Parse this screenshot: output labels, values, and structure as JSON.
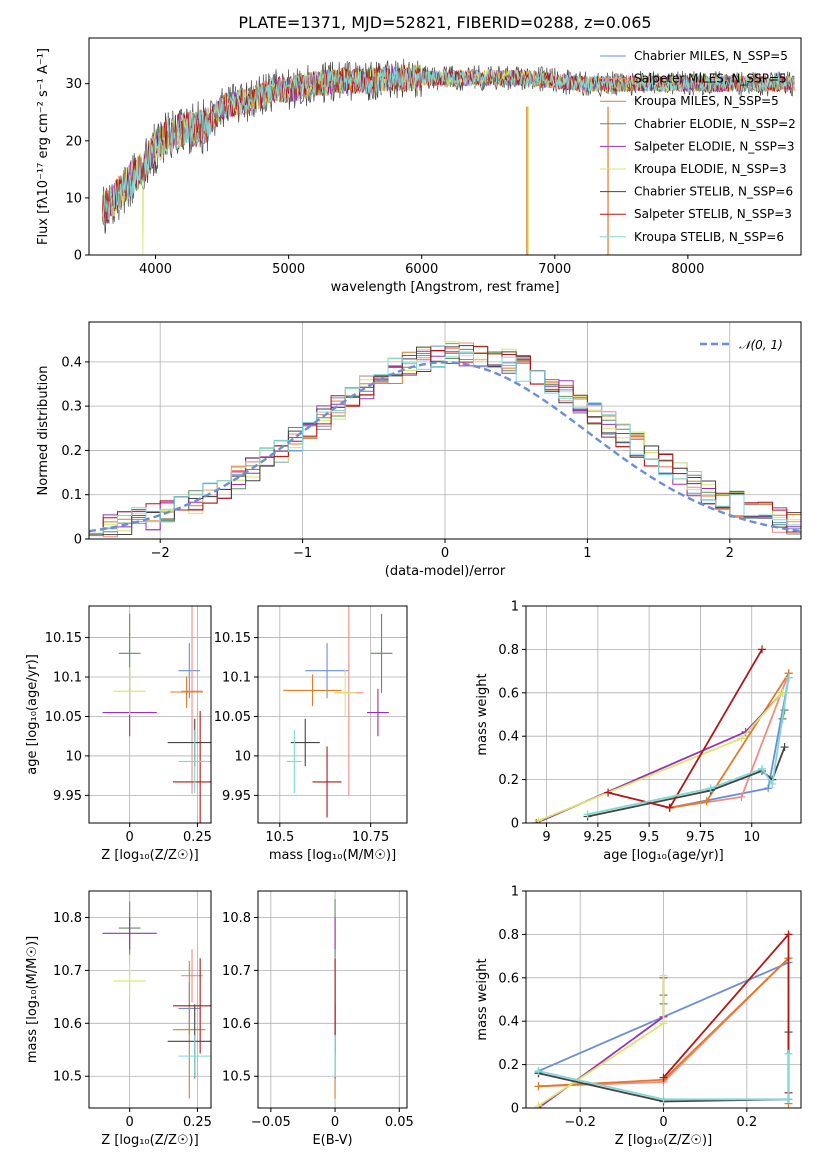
{
  "title": "PLATE=1371, MJD=52821, FIBERID=0288, z=0.065",
  "colors": {
    "Chabrier MILES": "#6b8fd6",
    "Salpeter MILES": "#f28b82",
    "Kroupa MILES": "#e07b2a",
    "Chabrier ELODIE": "#5f8f5f",
    "Salpeter ELODIE": "#9b30b5",
    "Kroupa ELODIE": "#d8e66a",
    "Chabrier STELIB": "#444444",
    "Salpeter STELIB": "#b01818",
    "Kroupa STELIB": "#7fd8d8"
  },
  "chart_data": [
    {
      "id": "spectrum",
      "type": "line",
      "xlabel": "wavelength [Angstrom, rest frame]",
      "ylabel": "Flux [fλ10⁻¹⁷ erg cm⁻² s⁻¹ A⁻¹]",
      "xlim": [
        3500,
        8850
      ],
      "ylim": [
        0,
        38
      ],
      "xticks": [
        4000,
        5000,
        6000,
        7000,
        8000
      ],
      "yticks": [
        0,
        10,
        20,
        30
      ],
      "grid": false,
      "legend": "top-right",
      "legend_entries": [
        "Chabrier MILES, N_SSP=5",
        "Salpeter MILES, N_SSP=5",
        "Kroupa MILES, N_SSP=5",
        "Chabrier ELODIE, N_SSP=2",
        "Salpeter ELODIE, N_SSP=3",
        "Kroupa ELODIE, N_SSP=3",
        "Chabrier STELIB, N_SSP=6",
        "Salpeter STELIB, N_SSP=3",
        "Kroupa STELIB, N_SSP=6"
      ],
      "continuum": [
        [
          3600,
          8
        ],
        [
          3700,
          10
        ],
        [
          3800,
          13
        ],
        [
          3900,
          15
        ],
        [
          4000,
          19
        ],
        [
          4100,
          21
        ],
        [
          4200,
          22
        ],
        [
          4300,
          22
        ],
        [
          4400,
          23
        ],
        [
          4500,
          26
        ],
        [
          4700,
          27
        ],
        [
          4900,
          29
        ],
        [
          5000,
          29
        ],
        [
          5100,
          29.5
        ],
        [
          5200,
          30
        ],
        [
          5400,
          30.5
        ],
        [
          5600,
          30.5
        ],
        [
          5800,
          31
        ],
        [
          6000,
          31
        ],
        [
          6200,
          31
        ],
        [
          6400,
          31
        ],
        [
          6600,
          31
        ],
        [
          6800,
          31
        ],
        [
          7000,
          30.5
        ],
        [
          7200,
          30
        ],
        [
          7400,
          30
        ],
        [
          7600,
          30
        ],
        [
          7800,
          30
        ],
        [
          8000,
          30
        ],
        [
          8200,
          30
        ],
        [
          8400,
          30
        ],
        [
          8800,
          30
        ]
      ]
    },
    {
      "id": "residuals",
      "type": "step",
      "xlabel": "(data-model)/error",
      "ylabel": "Normed distribution",
      "xlim": [
        -2.5,
        2.5
      ],
      "ylim": [
        0,
        0.49
      ],
      "xticks": [
        -2,
        -1,
        0,
        1,
        2
      ],
      "yticks": [
        0.0,
        0.1,
        0.2,
        0.3,
        0.4
      ],
      "grid": true,
      "legend": "top-right",
      "legend_entries": [
        "𝒩(0, 1)"
      ]
    },
    {
      "id": "age-vs-Z",
      "type": "scatter",
      "xlabel": "Z [log₁₀(Z/Z☉)]",
      "ylabel": "age  [log₁₀(age/yr)]",
      "xlim": [
        -0.15,
        0.3
      ],
      "ylim": [
        9.915,
        10.19
      ],
      "xticks": [
        0.0,
        0.25
      ],
      "yticks": [
        9.95,
        10.0,
        10.05,
        10.1,
        10.15
      ],
      "grid": true,
      "points": [
        {
          "series": "Chabrier MILES",
          "x": 0.22,
          "y": 10.108,
          "ex": 0.04,
          "ey": 0.035
        },
        {
          "series": "Salpeter MILES",
          "x": 0.23,
          "y": 10.082,
          "ex": 0.04,
          "ey": 0.13
        },
        {
          "series": "Kroupa MILES",
          "x": 0.21,
          "y": 10.081,
          "ex": 0.06,
          "ey": 0.02
        },
        {
          "series": "Chabrier ELODIE",
          "x": 0.0,
          "y": 10.13,
          "ex": 0.04,
          "ey": 0.05
        },
        {
          "series": "Salpeter ELODIE",
          "x": 0.0,
          "y": 10.055,
          "ex": 0.1,
          "ey": 0.03
        },
        {
          "series": "Kroupa ELODIE",
          "x": 0.0,
          "y": 10.082,
          "ex": 0.06,
          "ey": 0.03
        },
        {
          "series": "Chabrier STELIB",
          "x": 0.24,
          "y": 10.017,
          "ex": 0.1,
          "ey": 0.03
        },
        {
          "series": "Salpeter STELIB",
          "x": 0.26,
          "y": 9.967,
          "ex": 0.1,
          "ey": 0.09
        },
        {
          "series": "Kroupa STELIB",
          "x": 0.24,
          "y": 9.993,
          "ex": 0.06,
          "ey": 0.04
        }
      ]
    },
    {
      "id": "age-vs-mass",
      "type": "scatter",
      "xlabel": "mass [log₁₀(M/M☉)]",
      "ylabel": "",
      "xlim": [
        10.44,
        10.85
      ],
      "ylim": [
        9.915,
        10.19
      ],
      "xticks": [
        10.5,
        10.75
      ],
      "yticks": [
        9.95,
        10.0,
        10.05,
        10.1,
        10.15
      ],
      "grid": true,
      "points": [
        {
          "series": "Chabrier MILES",
          "x": 10.63,
          "y": 10.108,
          "ex": 0.06,
          "ey": 0.035
        },
        {
          "series": "Salpeter MILES",
          "x": 10.69,
          "y": 10.08,
          "ex": 0.04,
          "ey": 0.13
        },
        {
          "series": "Kroupa MILES",
          "x": 10.59,
          "y": 10.083,
          "ex": 0.08,
          "ey": 0.02
        },
        {
          "series": "Chabrier ELODIE",
          "x": 10.78,
          "y": 10.13,
          "ex": 0.03,
          "ey": 0.05
        },
        {
          "series": "Salpeter ELODIE",
          "x": 10.77,
          "y": 10.055,
          "ex": 0.03,
          "ey": 0.03
        },
        {
          "series": "Kroupa ELODIE",
          "x": 10.68,
          "y": 10.08,
          "ex": 0.03,
          "ey": 0.03
        },
        {
          "series": "Chabrier STELIB",
          "x": 10.57,
          "y": 10.017,
          "ex": 0.04,
          "ey": 0.03
        },
        {
          "series": "Salpeter STELIB",
          "x": 10.63,
          "y": 9.967,
          "ex": 0.04,
          "ey": 0.045
        },
        {
          "series": "Kroupa STELIB",
          "x": 10.54,
          "y": 9.993,
          "ex": 0.02,
          "ey": 0.04
        }
      ]
    },
    {
      "id": "mass-weight-vs-age",
      "type": "line",
      "xlabel": "age  [log₁₀(age/yr)]",
      "ylabel": "mass weight",
      "xlim": [
        8.9,
        10.24
      ],
      "ylim": [
        0.0,
        1.0
      ],
      "xticks": [
        9.0,
        9.25,
        9.5,
        9.75,
        10.0
      ],
      "yticks": [
        0.0,
        0.2,
        0.4,
        0.6,
        0.8,
        1.0
      ],
      "grid": true,
      "series": [
        {
          "series": "Chabrier MILES",
          "points": [
            [
              9.6,
              0.07
            ],
            [
              10.08,
              0.16
            ],
            [
              10.18,
              0.67
            ]
          ]
        },
        {
          "series": "Salpeter MILES",
          "points": [
            [
              9.6,
              0.07
            ],
            [
              9.95,
              0.12
            ],
            [
              10.18,
              0.69
            ]
          ]
        },
        {
          "series": "Kroupa MILES",
          "points": [
            [
              9.6,
              0.07
            ],
            [
              9.78,
              0.1
            ],
            [
              10.18,
              0.69
            ]
          ]
        },
        {
          "series": "Chabrier ELODIE",
          "points": [
            [
              10.15,
              0.48
            ],
            [
              10.16,
              0.52
            ]
          ]
        },
        {
          "series": "Salpeter ELODIE",
          "points": [
            [
              8.95,
              0.0
            ],
            [
              9.97,
              0.42
            ],
            [
              10.15,
              0.6
            ]
          ]
        },
        {
          "series": "Kroupa ELODIE",
          "points": [
            [
              8.96,
              0.01
            ],
            [
              9.95,
              0.39
            ],
            [
              10.15,
              0.6
            ]
          ]
        },
        {
          "series": "Chabrier STELIB",
          "points": [
            [
              9.2,
              0.03
            ],
            [
              9.8,
              0.15
            ],
            [
              10.05,
              0.24
            ],
            [
              10.1,
              0.2
            ],
            [
              10.16,
              0.35
            ]
          ]
        },
        {
          "series": "Salpeter STELIB",
          "points": [
            [
              9.3,
              0.14
            ],
            [
              9.6,
              0.07
            ],
            [
              10.05,
              0.8
            ]
          ]
        },
        {
          "series": "Kroupa STELIB",
          "points": [
            [
              9.2,
              0.04
            ],
            [
              9.8,
              0.16
            ],
            [
              10.05,
              0.25
            ],
            [
              10.1,
              0.18
            ],
            [
              10.18,
              0.67
            ]
          ]
        }
      ]
    },
    {
      "id": "mass-vs-Z",
      "type": "scatter",
      "xlabel": "Z [log₁₀(Z/Z☉)]",
      "ylabel": "mass [log₁₀(M/M☉)]",
      "xlim": [
        -0.15,
        0.3
      ],
      "ylim": [
        10.44,
        10.85
      ],
      "xticks": [
        0.0,
        0.25
      ],
      "yticks": [
        10.5,
        10.6,
        10.7,
        10.8
      ],
      "grid": true,
      "points": [
        {
          "series": "Chabrier MILES",
          "x": 0.22,
          "y": 10.628,
          "ex": 0.04,
          "ey": 0.05
        },
        {
          "series": "Salpeter MILES",
          "x": 0.23,
          "y": 10.69,
          "ex": 0.04,
          "ey": 0.05
        },
        {
          "series": "Kroupa MILES",
          "x": 0.22,
          "y": 10.588,
          "ex": 0.06,
          "ey": 0.13
        },
        {
          "series": "Chabrier ELODIE",
          "x": 0.0,
          "y": 10.78,
          "ex": 0.04,
          "ey": 0.05
        },
        {
          "series": "Salpeter ELODIE",
          "x": 0.0,
          "y": 10.77,
          "ex": 0.1,
          "ey": 0.03
        },
        {
          "series": "Kroupa ELODIE",
          "x": 0.0,
          "y": 10.68,
          "ex": 0.06,
          "ey": 0.03
        },
        {
          "series": "Chabrier STELIB",
          "x": 0.24,
          "y": 10.566,
          "ex": 0.1,
          "ey": 0.07
        },
        {
          "series": "Salpeter STELIB",
          "x": 0.26,
          "y": 10.633,
          "ex": 0.1,
          "ey": 0.09
        },
        {
          "series": "Kroupa STELIB",
          "x": 0.24,
          "y": 10.538,
          "ex": 0.06,
          "ey": 0.04
        }
      ]
    },
    {
      "id": "mass-vs-EBV",
      "type": "scatter",
      "xlabel": "E(B-V)",
      "ylabel": "",
      "xlim": [
        -0.06,
        0.056
      ],
      "ylim": [
        10.44,
        10.85
      ],
      "xticks": [
        -0.05,
        0.0,
        0.05
      ],
      "yticks": [
        10.5,
        10.6,
        10.7,
        10.8
      ],
      "grid": true,
      "points": [
        {
          "series": "Chabrier MILES",
          "x": 0.0,
          "y": 10.628,
          "ex": 0,
          "ey": 0.05
        },
        {
          "series": "Salpeter MILES",
          "x": 0.0,
          "y": 10.69,
          "ex": 0,
          "ey": 0.05
        },
        {
          "series": "Kroupa MILES",
          "x": 0.0,
          "y": 10.588,
          "ex": 0,
          "ey": 0.13
        },
        {
          "series": "Chabrier ELODIE",
          "x": 0.0,
          "y": 10.78,
          "ex": 0,
          "ey": 0.055
        },
        {
          "series": "Salpeter ELODIE",
          "x": 0.0,
          "y": 10.77,
          "ex": 0,
          "ey": 0.03
        },
        {
          "series": "Kroupa ELODIE",
          "x": 0.0,
          "y": 10.68,
          "ex": 0,
          "ey": 0.03
        },
        {
          "series": "Chabrier STELIB",
          "x": 0.0,
          "y": 10.566,
          "ex": 0,
          "ey": 0.07
        },
        {
          "series": "Salpeter STELIB",
          "x": 0.0,
          "y": 10.633,
          "ex": 0,
          "ey": 0.09
        },
        {
          "series": "Kroupa STELIB",
          "x": 0.0,
          "y": 10.538,
          "ex": 0,
          "ey": 0.04
        }
      ]
    },
    {
      "id": "mass-weight-vs-Z",
      "type": "line",
      "xlabel": "Z [log₁₀(Z/Z☉)]",
      "ylabel": "mass weight",
      "xlim": [
        -0.33,
        0.33
      ],
      "ylim": [
        0.0,
        1.0
      ],
      "xticks": [
        -0.2,
        0.0,
        0.2
      ],
      "yticks": [
        0.0,
        0.2,
        0.4,
        0.6,
        0.8,
        1.0
      ],
      "grid": true,
      "series": [
        {
          "series": "Chabrier MILES",
          "points": [
            [
              -0.3,
              0.16
            ],
            [
              -0.3,
              0.17
            ],
            [
              0.3,
              0.67
            ]
          ]
        },
        {
          "series": "Salpeter MILES",
          "points": [
            [
              -0.3,
              0.1
            ],
            [
              0.0,
              0.12
            ],
            [
              0.3,
              0.69
            ]
          ]
        },
        {
          "series": "Kroupa MILES",
          "points": [
            [
              -0.3,
              0.1
            ],
            [
              0.0,
              0.13
            ],
            [
              0.3,
              0.69
            ],
            [
              0.3,
              0.02
            ]
          ]
        },
        {
          "series": "Chabrier ELODIE",
          "points": [
            [
              0.0,
              0.48
            ],
            [
              0.0,
              0.52
            ]
          ]
        },
        {
          "series": "Salpeter ELODIE",
          "points": [
            [
              -0.3,
              0.0
            ],
            [
              0.0,
              0.42
            ],
            [
              0.0,
              0.6
            ]
          ]
        },
        {
          "series": "Kroupa ELODIE",
          "points": [
            [
              -0.3,
              0.01
            ],
            [
              0.0,
              0.39
            ],
            [
              0.0,
              0.61
            ]
          ]
        },
        {
          "series": "Chabrier STELIB",
          "points": [
            [
              -0.3,
              0.16
            ],
            [
              0.0,
              0.03
            ],
            [
              0.3,
              0.04
            ],
            [
              0.3,
              0.35
            ]
          ]
        },
        {
          "series": "Salpeter STELIB",
          "points": [
            [
              0.0,
              0.14
            ],
            [
              0.3,
              0.8
            ],
            [
              0.3,
              0.07
            ]
          ]
        },
        {
          "series": "Kroupa STELIB",
          "points": [
            [
              -0.3,
              0.17
            ],
            [
              0.0,
              0.04
            ],
            [
              0.3,
              0.04
            ],
            [
              0.3,
              0.25
            ]
          ]
        }
      ]
    }
  ]
}
